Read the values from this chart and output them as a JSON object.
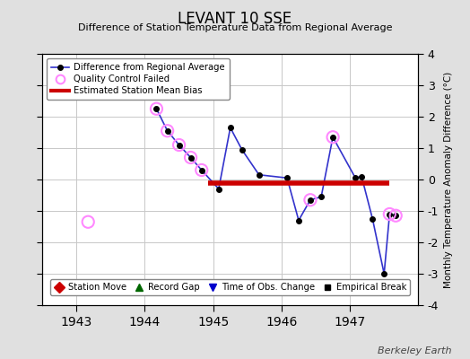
{
  "title": "LEVANT 10 SSE",
  "subtitle": "Difference of Station Temperature Data from Regional Average",
  "ylabel": "Monthly Temperature Anomaly Difference (°C)",
  "xlim": [
    1942.5,
    1948.0
  ],
  "ylim": [
    -4,
    4
  ],
  "yticks": [
    -4,
    -3,
    -2,
    -1,
    0,
    1,
    2,
    3,
    4
  ],
  "xticks": [
    1943,
    1944,
    1945,
    1946,
    1947
  ],
  "background_color": "#e0e0e0",
  "plot_background": "#ffffff",
  "grid_color": "#c8c8c8",
  "main_line_color": "#3333cc",
  "main_marker_color": "#000000",
  "bias_line_color": "#cc0000",
  "qc_circle_color": "#ff88ff",
  "watermark": "Berkeley Earth",
  "main_data_x": [
    1944.17,
    1944.33,
    1944.5,
    1944.67,
    1944.83,
    1945.08,
    1945.25,
    1945.42,
    1945.67,
    1946.08,
    1946.25,
    1946.42,
    1946.58,
    1946.75,
    1947.08,
    1947.17,
    1947.33,
    1947.5,
    1947.58,
    1947.67
  ],
  "main_data_y": [
    2.25,
    1.55,
    1.1,
    0.7,
    0.3,
    -0.3,
    1.65,
    0.95,
    0.15,
    0.05,
    -1.3,
    -0.65,
    -0.55,
    1.35,
    0.05,
    0.1,
    -1.25,
    -3.0,
    -1.1,
    -1.15
  ],
  "qc_failed_x": [
    1943.17,
    1944.17,
    1944.33,
    1944.5,
    1944.67,
    1944.83,
    1946.42,
    1946.75,
    1947.58,
    1947.67
  ],
  "qc_failed_y": [
    -1.35,
    2.25,
    1.55,
    1.1,
    0.7,
    0.3,
    -0.65,
    1.35,
    -1.1,
    -1.15
  ],
  "bias_x_start": 1944.92,
  "bias_x_end": 1947.58,
  "bias_y": -0.12,
  "top_legend": [
    {
      "label": "Difference from Regional Average"
    },
    {
      "label": "Quality Control Failed"
    },
    {
      "label": "Estimated Station Mean Bias"
    }
  ],
  "bottom_legend": [
    {
      "label": "Station Move"
    },
    {
      "label": "Record Gap"
    },
    {
      "label": "Time of Obs. Change"
    },
    {
      "label": "Empirical Break"
    }
  ]
}
